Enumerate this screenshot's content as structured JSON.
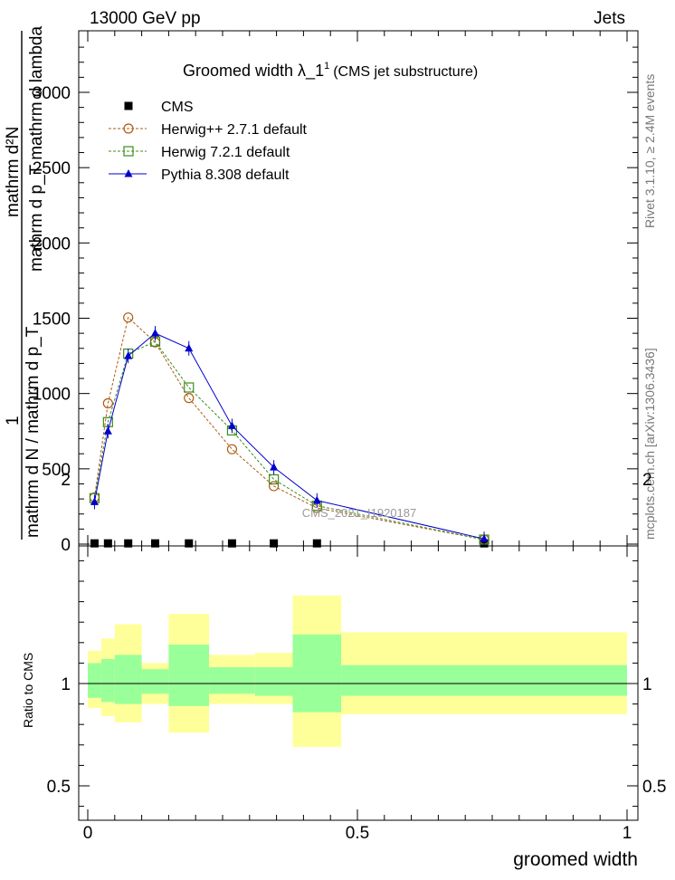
{
  "header": {
    "left": "13000 GeV pp",
    "right": "Jets"
  },
  "plot": {
    "title_main": "Groomed width  λ_1",
    "title_sup": "1",
    "title_paren": "(CMS jet substructure)",
    "ylabel_num": "mathrm d²N",
    "ylabel_den": "mathrm d p_T mathrm d lambda",
    "ylabel_num_mid": "1",
    "ylabel_den2": "mathrm d N / mathrm d p_T",
    "watermark": "CMS_2021_I1920187",
    "side_text_top": "Rivet 3.1.10, ≥ 2.4M events",
    "side_text_bottom": "mcplots.cern.ch [arXiv:1306.3436]",
    "ratio_ylabel": "Ratio to CMS",
    "xlabel": "groomed width"
  },
  "chart_data": {
    "type": "line",
    "x_range": [
      0,
      1
    ],
    "main_ylim": [
      0,
      3000
    ],
    "main_yticks": [
      0,
      500,
      1000,
      1500,
      2000,
      2500,
      3000
    ],
    "main_ytick_labels": [
      "0",
      "500",
      "1000",
      "1500",
      "2000",
      "2500",
      "3000"
    ],
    "ratio_ylim": [
      0.35,
      2.3
    ],
    "ratio_yticks": [
      0.5,
      1,
      2
    ],
    "ratio_ytick_labels": [
      "0.5",
      "1",
      "2"
    ],
    "xticks": [
      0,
      0.5,
      1
    ],
    "xtick_labels": [
      "0",
      "0.5",
      "1"
    ],
    "legend_position": "top-left",
    "colors": {
      "cms": "#000000",
      "herwigpp": "#b05a10",
      "herwig7": "#3c8c1e",
      "pythia": "#0000cc",
      "band_inner": "#99ff99",
      "band_outer": "#ffff99"
    },
    "series": [
      {
        "name": "CMS",
        "marker": "filled-square",
        "x": [
          0.0125,
          0.0375,
          0.075,
          0.125,
          0.1875,
          0.2675,
          0.345,
          0.425,
          0.735
        ],
        "y": [
          5,
          5,
          5,
          5,
          5,
          5,
          5,
          5,
          5
        ]
      },
      {
        "name": "Herwig++ 2.7.1 default",
        "marker": "open-circle",
        "x": [
          0.0125,
          0.0375,
          0.075,
          0.125,
          0.1875,
          0.2675,
          0.345,
          0.425,
          0.735
        ],
        "y": [
          310,
          935,
          1505,
          1340,
          970,
          630,
          385,
          240,
          30
        ]
      },
      {
        "name": "Herwig 7.2.1 default",
        "marker": "open-square",
        "x": [
          0.0125,
          0.0375,
          0.075,
          0.125,
          0.1875,
          0.2675,
          0.345,
          0.425,
          0.735
        ],
        "y": [
          305,
          810,
          1265,
          1345,
          1040,
          755,
          430,
          255,
          30
        ]
      },
      {
        "name": "Pythia 8.308 default",
        "marker": "filled-triangle",
        "x": [
          0.0125,
          0.0375,
          0.075,
          0.125,
          0.1875,
          0.2675,
          0.345,
          0.425,
          0.735
        ],
        "y": [
          280,
          750,
          1250,
          1400,
          1300,
          785,
          510,
          290,
          35
        ]
      }
    ],
    "ratio_bands": [
      {
        "x0": 0.0,
        "x1": 0.025,
        "inner": [
          0.93,
          1.1
        ],
        "outer": [
          0.88,
          1.16
        ]
      },
      {
        "x0": 0.025,
        "x1": 0.05,
        "inner": [
          0.91,
          1.12
        ],
        "outer": [
          0.84,
          1.22
        ]
      },
      {
        "x0": 0.05,
        "x1": 0.1,
        "inner": [
          0.9,
          1.14
        ],
        "outer": [
          0.81,
          1.29
        ]
      },
      {
        "x0": 0.1,
        "x1": 0.15,
        "inner": [
          0.95,
          1.07
        ],
        "outer": [
          0.9,
          1.1
        ]
      },
      {
        "x0": 0.15,
        "x1": 0.225,
        "inner": [
          0.89,
          1.19
        ],
        "outer": [
          0.76,
          1.34
        ]
      },
      {
        "x0": 0.225,
        "x1": 0.31,
        "inner": [
          0.95,
          1.08
        ],
        "outer": [
          0.9,
          1.14
        ]
      },
      {
        "x0": 0.31,
        "x1": 0.38,
        "inner": [
          0.94,
          1.08
        ],
        "outer": [
          0.9,
          1.15
        ]
      },
      {
        "x0": 0.38,
        "x1": 0.47,
        "inner": [
          0.86,
          1.24
        ],
        "outer": [
          0.69,
          1.43
        ]
      },
      {
        "x0": 0.47,
        "x1": 1.0,
        "inner": [
          0.94,
          1.09
        ],
        "outer": [
          0.85,
          1.25
        ]
      }
    ]
  }
}
